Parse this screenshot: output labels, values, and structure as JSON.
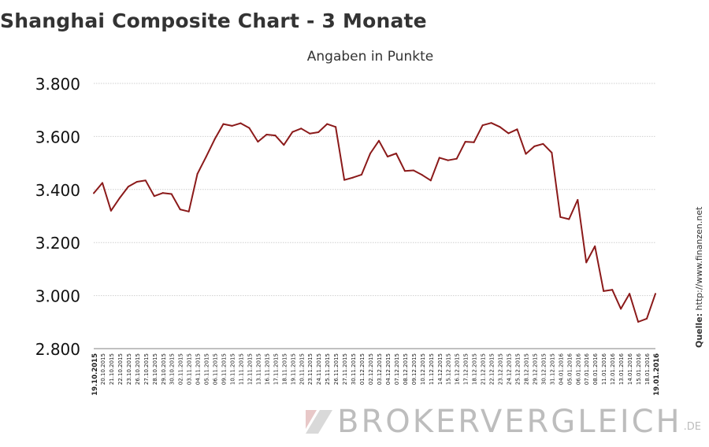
{
  "chart_data": {
    "type": "line",
    "title": "Shanghai Composite Chart - 3 Monate",
    "subtitle": "Angaben in Punkte",
    "ylim": [
      2800,
      3800
    ],
    "y_ticks": [
      2800,
      3000,
      3200,
      3400,
      3600,
      3800
    ],
    "y_tick_labels": [
      "2.800",
      "3.000",
      "3.200",
      "3.400",
      "3.600",
      "3.800"
    ],
    "grid": true,
    "line_color": "#8b1a1a",
    "x": [
      "19.10.2015",
      "20.10.2015",
      "21.10.2015",
      "22.10.2015",
      "23.10.2015",
      "26.10.2015",
      "27.10.2015",
      "28.10.2015",
      "29.10.2015",
      "30.10.2015",
      "02.11.2015",
      "03.11.2015",
      "04.11.2015",
      "05.11.2015",
      "06.11.2015",
      "09.11.2015",
      "10.11.2015",
      "11.11.2015",
      "12.11.2015",
      "13.11.2015",
      "16.11.2015",
      "17.11.2015",
      "18.11.2015",
      "19.11.2015",
      "20.11.2015",
      "23.11.2015",
      "24.11.2015",
      "25.11.2015",
      "26.11.2015",
      "27.11.2015",
      "30.11.2015",
      "01.12.2015",
      "02.12.2015",
      "03.12.2015",
      "04.12.2015",
      "07.12.2015",
      "08.12.2015",
      "09.12.2015",
      "10.12.2015",
      "11.12.2015",
      "14.12.2015",
      "15.12.2015",
      "16.12.2015",
      "17.12.2015",
      "18.12.2015",
      "21.12.2015",
      "22.12.2015",
      "23.12.2015",
      "24.12.2015",
      "25.12.2015",
      "28.12.2015",
      "29.12.2015",
      "30.12.2015",
      "31.12.2015",
      "04.01.2016",
      "05.01.2016",
      "06.01.2016",
      "07.01.2016",
      "08.01.2016",
      "11.01.2016",
      "12.01.2016",
      "13.01.2016",
      "14.01.2016",
      "15.01.2016",
      "18.01.2016",
      "19.01.2016"
    ],
    "values": [
      3386,
      3425,
      3320,
      3368,
      3411,
      3429,
      3434,
      3375,
      3387,
      3383,
      3325,
      3317,
      3459,
      3523,
      3590,
      3647,
      3640,
      3650,
      3632,
      3580,
      3607,
      3604,
      3568,
      3617,
      3630,
      3611,
      3616,
      3647,
      3636,
      3436,
      3445,
      3456,
      3536,
      3584,
      3524,
      3536,
      3470,
      3472,
      3455,
      3434,
      3520,
      3510,
      3516,
      3580,
      3578,
      3642,
      3651,
      3636,
      3612,
      3627,
      3534,
      3563,
      3572,
      3539,
      3296,
      3288,
      3361,
      3125,
      3186,
      3017,
      3022,
      2950,
      3007,
      2901,
      2913,
      3007
    ]
  },
  "source": {
    "label": "Quelle:",
    "url": "http://www.finanzen.net"
  },
  "watermark": {
    "text": "BROKERVERGLEICH",
    "suffix": ".DE"
  }
}
